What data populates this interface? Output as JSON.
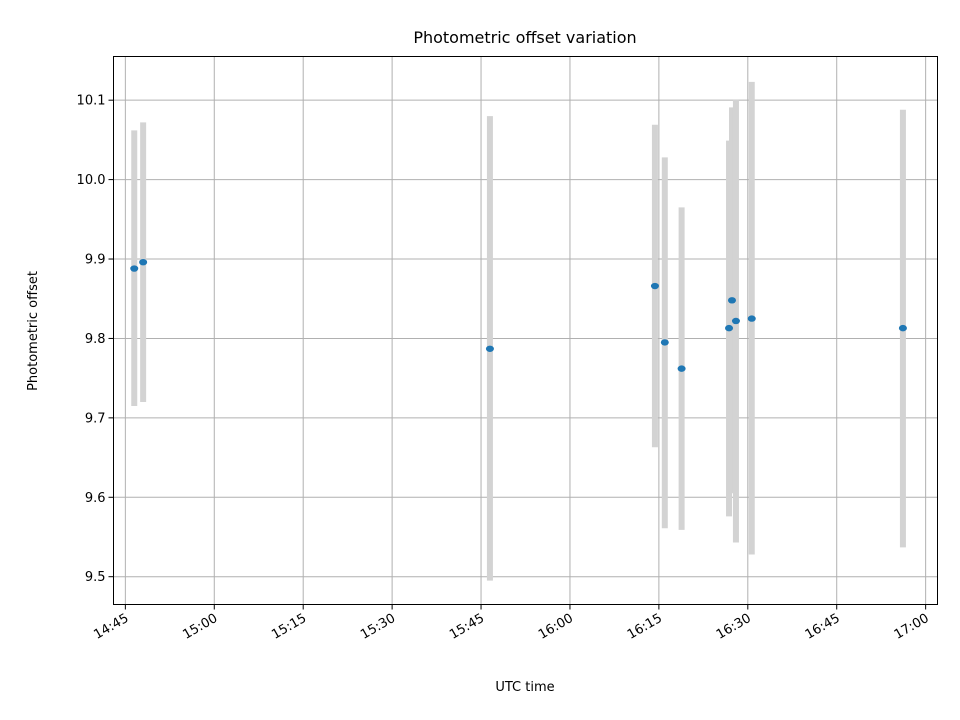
{
  "chart_data": {
    "type": "scatter",
    "title": "Photometric offset variation",
    "xlabel": "UTC time",
    "ylabel": "Photometric offset",
    "xlim": [
      "14:43",
      "17:02"
    ],
    "ylim": [
      9.465,
      10.155
    ],
    "xticks": [
      "14:45",
      "15:00",
      "15:15",
      "15:30",
      "15:45",
      "16:00",
      "16:15",
      "16:30",
      "16:45",
      "17:00"
    ],
    "yticks": [
      9.5,
      9.6,
      9.7,
      9.8,
      9.9,
      10.0,
      10.1
    ],
    "grid": true,
    "legend": "none",
    "point_color": "#1f77b4",
    "errorbar_color": "#d3d3d3",
    "points": [
      {
        "x": "14:46:30",
        "y": 9.888,
        "ylow": 9.715,
        "yhigh": 10.062
      },
      {
        "x": "14:48:00",
        "y": 9.896,
        "ylow": 9.72,
        "yhigh": 10.072
      },
      {
        "x": "15:46:30",
        "y": 9.787,
        "ylow": 9.495,
        "yhigh": 10.08
      },
      {
        "x": "16:14:20",
        "y": 9.866,
        "ylow": 9.663,
        "yhigh": 10.069
      },
      {
        "x": "16:16:00",
        "y": 9.795,
        "ylow": 9.561,
        "yhigh": 10.028
      },
      {
        "x": "16:18:50",
        "y": 9.762,
        "ylow": 9.559,
        "yhigh": 9.965
      },
      {
        "x": "16:26:50",
        "y": 9.813,
        "ylow": 9.576,
        "yhigh": 10.049
      },
      {
        "x": "16:27:20",
        "y": 9.848,
        "ylow": 9.605,
        "yhigh": 10.091
      },
      {
        "x": "16:28:00",
        "y": 9.822,
        "ylow": 9.543,
        "yhigh": 10.101
      },
      {
        "x": "16:30:40",
        "y": 9.825,
        "ylow": 9.528,
        "yhigh": 10.123
      },
      {
        "x": "16:56:10",
        "y": 9.813,
        "ylow": 9.537,
        "yhigh": 10.088
      }
    ]
  }
}
